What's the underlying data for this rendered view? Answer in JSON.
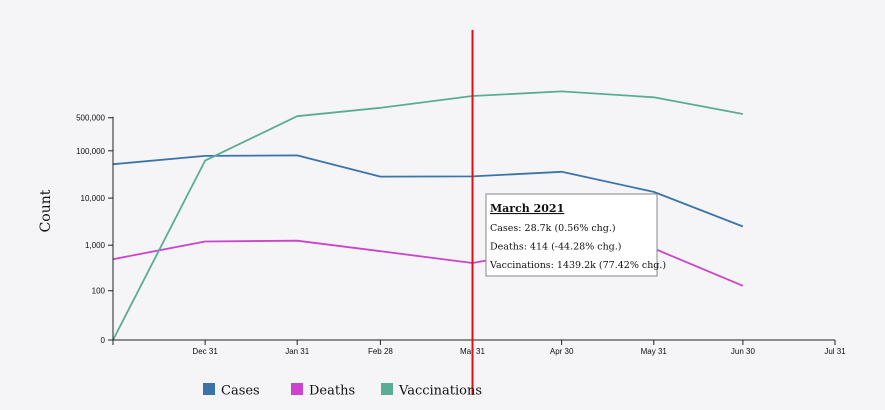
{
  "chart_data": {
    "type": "line",
    "ylabel": "Count",
    "y_scale": "symlog",
    "y_ticks": [
      {
        "value": 0,
        "label": "0"
      },
      {
        "value": 100,
        "label": "100"
      },
      {
        "value": 1000,
        "label": "1,000"
      },
      {
        "value": 10000,
        "label": "10,000"
      },
      {
        "value": 100000,
        "label": "100,000"
      },
      {
        "value": 500000,
        "label": "500,000"
      }
    ],
    "x_ticks": [
      "Dec 31",
      "Jan 31",
      "Feb 28",
      "Mar 31",
      "Apr 30",
      "May 31",
      "Jun 30",
      "Jul 31"
    ],
    "x_domain": [
      "2020-11-30",
      "2021-07-31"
    ],
    "x": [
      "2020-11-30",
      "2020-12-31",
      "2021-01-31",
      "2021-02-28",
      "2021-03-31",
      "2021-04-30",
      "2021-05-31",
      "2021-06-30"
    ],
    "series": [
      {
        "name": "Cases",
        "color": "#3b74a8",
        "values": [
          52000,
          78000,
          80000,
          28500,
          28700,
          36000,
          13500,
          2500
        ]
      },
      {
        "name": "Deaths",
        "color": "#cc44cc",
        "values": [
          500,
          1200,
          1250,
          745,
          414,
          900,
          850,
          130
        ]
      },
      {
        "name": "Vaccinations",
        "color": "#5aad94",
        "values": [
          0,
          62000,
          540000,
          810000,
          1439200,
          1800000,
          1350000,
          600000
        ]
      }
    ],
    "legend_position": "bottom-left",
    "grid": false,
    "cursor_date": "2021-03-31",
    "cursor_color": "#dd1111",
    "tooltip": {
      "title": "March 2021",
      "lines": [
        "Cases: 28.7k (0.56% chg.)",
        "Deaths: 414 (-44.28% chg.)",
        "Vaccinations: 1439.2k (77.42% chg.)"
      ]
    }
  }
}
